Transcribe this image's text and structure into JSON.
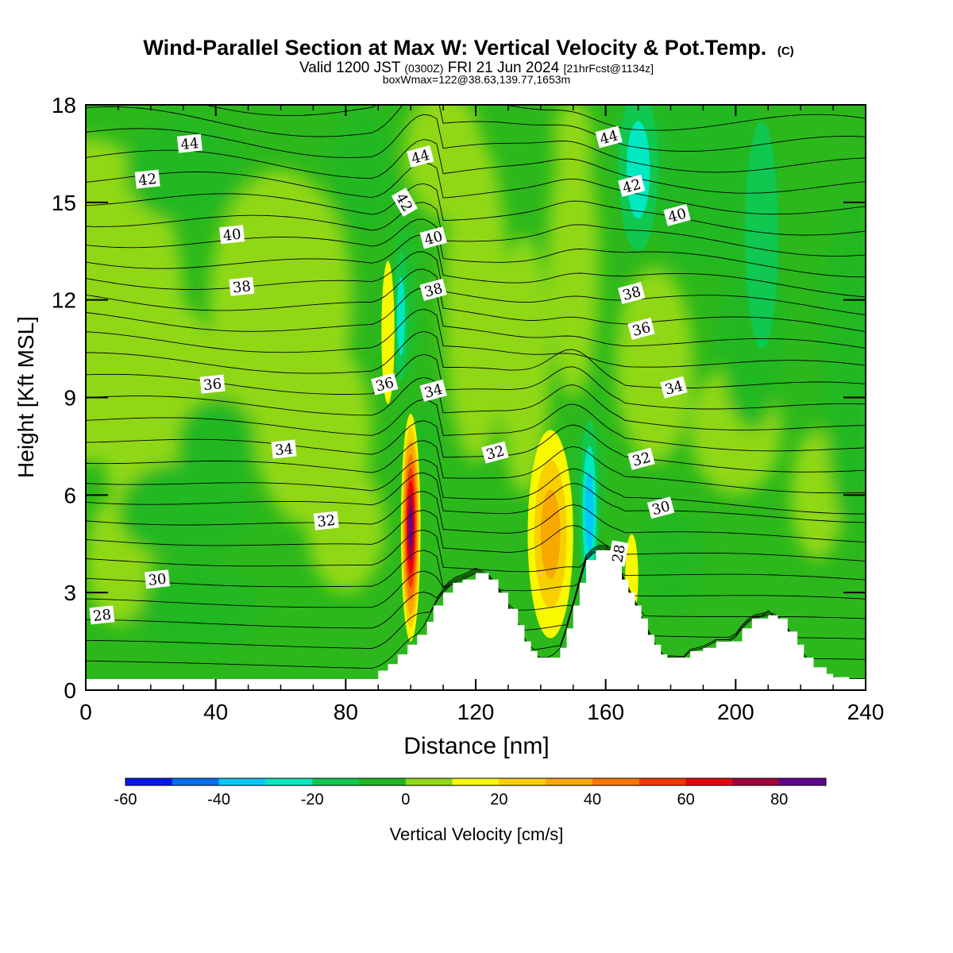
{
  "chart_data": {
    "type": "heatmap",
    "title": "Wind-Parallel Section at Max W: Vertical Velocity & Pot.Temp.",
    "title_mark": "(C)",
    "subtitle": {
      "valid": "Valid 1200 JST",
      "utc": "(0300Z)",
      "date": "FRI 21 Jun 2024",
      "fcst": "[21hrFcst@1134z]"
    },
    "box_info": "boxWmax=122@38.63,139.77,1653m",
    "xlabel": "Distance [nm]",
    "ylabel": "Height [Kft MSL]",
    "xlim": [
      0,
      240
    ],
    "ylim": [
      0,
      18
    ],
    "xticks": [
      0,
      40,
      80,
      120,
      160,
      200,
      240
    ],
    "yticks": [
      0,
      3,
      6,
      9,
      12,
      15,
      18
    ],
    "colorbar": {
      "label": "Vertical Velocity [cm/s]",
      "min": -60,
      "max": 90,
      "step": 10,
      "ticks": [
        -60,
        -40,
        -20,
        0,
        20,
        40,
        60,
        80
      ],
      "colors": [
        "#0018f0",
        "#0070f0",
        "#00c8f8",
        "#00e8c0",
        "#10c850",
        "#20b820",
        "#90d818",
        "#f8f800",
        "#f8d000",
        "#f8a800",
        "#f87800",
        "#f83800",
        "#e80010",
        "#a00040",
        "#600090"
      ]
    },
    "terrain_height_kft": [
      {
        "x": 90,
        "h": 0.6
      },
      {
        "x": 93,
        "h": 0.8
      },
      {
        "x": 96,
        "h": 1.1
      },
      {
        "x": 99,
        "h": 1.4
      },
      {
        "x": 102,
        "h": 1.7
      },
      {
        "x": 105,
        "h": 2.1
      },
      {
        "x": 107,
        "h": 2.6
      },
      {
        "x": 110,
        "h": 3.0
      },
      {
        "x": 113,
        "h": 3.3
      },
      {
        "x": 116,
        "h": 3.4
      },
      {
        "x": 120,
        "h": 3.6
      },
      {
        "x": 124,
        "h": 3.4
      },
      {
        "x": 127,
        "h": 3.0
      },
      {
        "x": 130,
        "h": 2.5
      },
      {
        "x": 133,
        "h": 2.0
      },
      {
        "x": 135,
        "h": 1.5
      },
      {
        "x": 137,
        "h": 1.2
      },
      {
        "x": 139,
        "h": 1.0
      },
      {
        "x": 143,
        "h": 1.0
      },
      {
        "x": 146,
        "h": 1.3
      },
      {
        "x": 148,
        "h": 1.9
      },
      {
        "x": 150,
        "h": 2.6
      },
      {
        "x": 152,
        "h": 3.3
      },
      {
        "x": 154,
        "h": 4.0
      },
      {
        "x": 157,
        "h": 4.3
      },
      {
        "x": 161,
        "h": 4.3
      },
      {
        "x": 163,
        "h": 3.9
      },
      {
        "x": 165,
        "h": 3.4
      },
      {
        "x": 167,
        "h": 3.0
      },
      {
        "x": 169,
        "h": 2.6
      },
      {
        "x": 171,
        "h": 2.2
      },
      {
        "x": 173,
        "h": 1.7
      },
      {
        "x": 175,
        "h": 1.4
      },
      {
        "x": 177,
        "h": 1.1
      },
      {
        "x": 179,
        "h": 1.0
      },
      {
        "x": 184,
        "h": 1.0
      },
      {
        "x": 186,
        "h": 1.2
      },
      {
        "x": 190,
        "h": 1.3
      },
      {
        "x": 194,
        "h": 1.5
      },
      {
        "x": 199,
        "h": 1.5
      },
      {
        "x": 202,
        "h": 1.9
      },
      {
        "x": 205,
        "h": 2.2
      },
      {
        "x": 210,
        "h": 2.3
      },
      {
        "x": 213,
        "h": 2.2
      },
      {
        "x": 216,
        "h": 1.8
      },
      {
        "x": 219,
        "h": 1.4
      },
      {
        "x": 221,
        "h": 1.0
      },
      {
        "x": 224,
        "h": 0.7
      },
      {
        "x": 228,
        "h": 0.5
      },
      {
        "x": 230,
        "h": 0.4
      },
      {
        "x": 235,
        "h": 0.35
      }
    ],
    "w_features": [
      {
        "x": 100,
        "z": 5.0,
        "rx": 3,
        "rz": 3.5,
        "value": 80
      },
      {
        "x": 143,
        "z": 4.8,
        "rx": 7,
        "rz": 3.2,
        "value": 35
      },
      {
        "x": 155,
        "z": 5.5,
        "rx": 3,
        "rz": 2.8,
        "value": -30
      },
      {
        "x": 93,
        "z": 11.0,
        "rx": 2,
        "rz": 2.2,
        "value": 15
      },
      {
        "x": 97,
        "z": 11.5,
        "rx": 2,
        "rz": 2.0,
        "value": -20
      },
      {
        "x": 168,
        "z": 3.5,
        "rx": 2,
        "rz": 1.3,
        "value": 15
      },
      {
        "x": 170,
        "z": 16.0,
        "rx": 6,
        "rz": 2.5,
        "value": -20
      },
      {
        "x": 208,
        "z": 14.0,
        "rx": 5,
        "rz": 3.5,
        "value": -10
      }
    ],
    "theta_contours": [
      {
        "value": 28,
        "label_x": 5,
        "label_z": 2.3,
        "shown": true
      },
      {
        "value": 30,
        "label_x": 22,
        "label_z": 3.4,
        "shown": true
      },
      {
        "value": 32,
        "label_x": 74,
        "label_z": 5.2,
        "shown": true
      },
      {
        "value": 34,
        "label_x": 61,
        "label_z": 7.4,
        "shown": true
      },
      {
        "value": 36,
        "label_x": 39,
        "label_z": 9.4,
        "shown": true
      },
      {
        "value": 38,
        "label_x": 48,
        "label_z": 12.4,
        "shown": true
      },
      {
        "value": 40,
        "label_x": 45,
        "label_z": 14.0,
        "shown": true
      },
      {
        "value": 42,
        "label_x": 19,
        "label_z": 15.7,
        "shown": true
      },
      {
        "value": 44,
        "label_x": 32,
        "label_z": 16.8,
        "shown": true
      }
    ],
    "extra_contour_labels": [
      {
        "value": 44,
        "x": 103,
        "z": 16.4
      },
      {
        "value": 42,
        "x": 98,
        "z": 15.0
      },
      {
        "value": 40,
        "x": 107,
        "z": 13.9
      },
      {
        "value": 38,
        "x": 107,
        "z": 12.3
      },
      {
        "value": 36,
        "x": 92,
        "z": 9.4
      },
      {
        "value": 34,
        "x": 107,
        "z": 9.2
      },
      {
        "value": 32,
        "x": 126,
        "z": 7.3
      },
      {
        "value": 44,
        "x": 161,
        "z": 17.0
      },
      {
        "value": 42,
        "x": 168,
        "z": 15.5
      },
      {
        "value": 40,
        "x": 182,
        "z": 14.6
      },
      {
        "value": 38,
        "x": 168,
        "z": 12.2
      },
      {
        "value": 36,
        "x": 171,
        "z": 11.1
      },
      {
        "value": 34,
        "x": 181,
        "z": 9.3
      },
      {
        "value": 32,
        "x": 171,
        "z": 7.1
      },
      {
        "value": 30,
        "x": 177,
        "z": 5.6
      },
      {
        "value": 28,
        "x": 164,
        "z": 4.2
      }
    ]
  }
}
